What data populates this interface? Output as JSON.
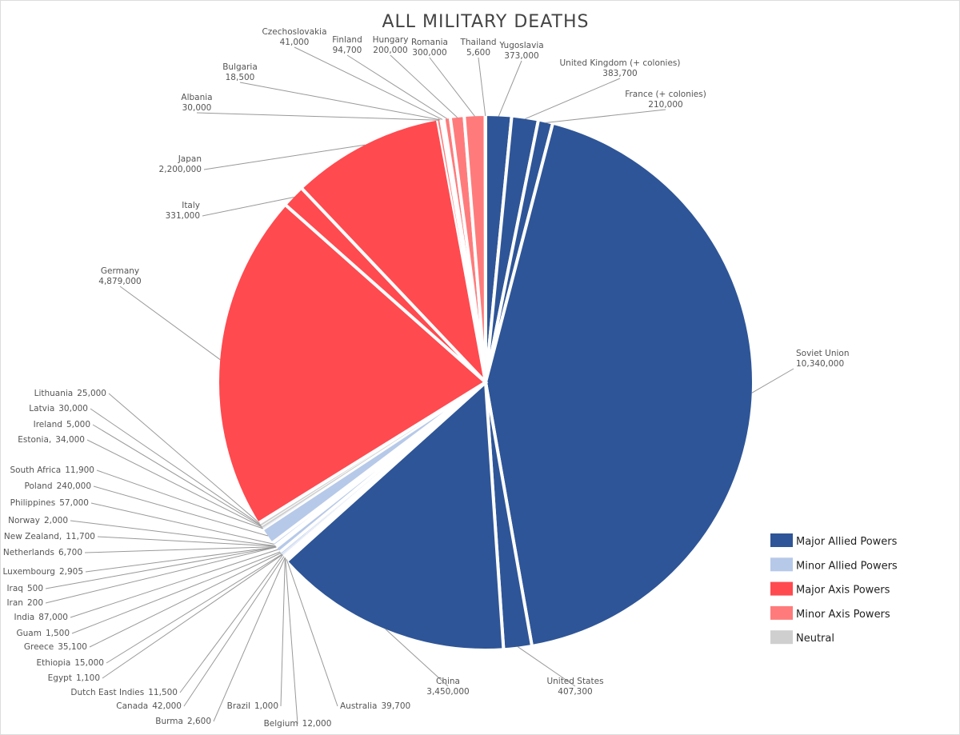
{
  "chart_data": {
    "type": "pie",
    "title": "ALL MILITARY DEATHS",
    "legend_position": "bottom-right",
    "legend": [
      {
        "label": "Major Allied Powers",
        "color": "#2e5597"
      },
      {
        "label": "Minor Allied Powers",
        "color": "#b7c9e8"
      },
      {
        "label": "Major Axis Powers",
        "color": "#ff4a4f"
      },
      {
        "label": "Minor Axis Powers",
        "color": "#ff7b7b"
      },
      {
        "label": "Neutral",
        "color": "#cfcfcf"
      }
    ],
    "items": [
      {
        "name": "Yugoslavia",
        "value_text": "373,000",
        "value": 373000,
        "group": 0
      },
      {
        "name": "United Kingdom (+ colonies)",
        "value_text": "383,700",
        "value": 383700,
        "group": 0
      },
      {
        "name": "France (+ colonies)",
        "value_text": "210,000",
        "value": 210000,
        "group": 0
      },
      {
        "name": "Soviet Union",
        "value_text": "10,340,000",
        "value": 10340000,
        "group": 0
      },
      {
        "name": "United States",
        "value_text": "407,300",
        "value": 407300,
        "group": 0
      },
      {
        "name": "China",
        "value_text": "3,450,000",
        "value": 3450000,
        "group": 0
      },
      {
        "name": "Australia",
        "value_text": "39,700",
        "value": 39700,
        "group": 1
      },
      {
        "name": "Belgium",
        "value_text": "12,000",
        "value": 12000,
        "group": 1
      },
      {
        "name": "Brazil",
        "value_text": "1,000",
        "value": 1000,
        "group": 1
      },
      {
        "name": "Burma",
        "value_text": "2,600",
        "value": 2600,
        "group": 1
      },
      {
        "name": "Canada",
        "value_text": "42,000",
        "value": 42000,
        "group": 1
      },
      {
        "name": "Dutch East Indies",
        "value_text": "11,500",
        "value": 11500,
        "group": 1
      },
      {
        "name": "Egypt",
        "value_text": "1,100",
        "value": 1100,
        "group": 1
      },
      {
        "name": "Ethiopia",
        "value_text": "15,000",
        "value": 15000,
        "group": 1
      },
      {
        "name": "Greece",
        "value_text": "35,100",
        "value": 35100,
        "group": 1
      },
      {
        "name": "Guam",
        "value_text": "1,500",
        "value": 1500,
        "group": 1
      },
      {
        "name": "India",
        "value_text": "87,000",
        "value": 87000,
        "group": 1
      },
      {
        "name": "Iran",
        "value_text": "200",
        "value": 200,
        "group": 1
      },
      {
        "name": "Iraq",
        "value_text": "500",
        "value": 500,
        "group": 1
      },
      {
        "name": "Luxembourg",
        "value_text": "2,905",
        "value": 2905,
        "group": 1
      },
      {
        "name": "Netherlands",
        "value_text": "6,700",
        "value": 6700,
        "group": 1
      },
      {
        "name": "New Zealand,",
        "value_text": "11,700",
        "value": 11700,
        "group": 1
      },
      {
        "name": "Norway",
        "value_text": "2,000",
        "value": 2000,
        "group": 1
      },
      {
        "name": "Philippines",
        "value_text": "57,000",
        "value": 57000,
        "group": 1
      },
      {
        "name": "Poland",
        "value_text": "240,000",
        "value": 240000,
        "group": 1
      },
      {
        "name": "South Africa",
        "value_text": "11,900",
        "value": 11900,
        "group": 1
      },
      {
        "name": "Estonia,",
        "value_text": "34,000",
        "value": 34000,
        "group": 4
      },
      {
        "name": "Ireland",
        "value_text": "5,000",
        "value": 5000,
        "group": 4
      },
      {
        "name": "Latvia",
        "value_text": "30,000",
        "value": 30000,
        "group": 4
      },
      {
        "name": "Lithuania",
        "value_text": "25,000",
        "value": 25000,
        "group": 4
      },
      {
        "name": "Germany",
        "value_text": "4,879,000",
        "value": 4879000,
        "group": 2
      },
      {
        "name": "Italy",
        "value_text": "331,000",
        "value": 331000,
        "group": 2
      },
      {
        "name": "Japan",
        "value_text": "2,200,000",
        "value": 2200000,
        "group": 2
      },
      {
        "name": "Albania",
        "value_text": "30,000",
        "value": 30000,
        "group": 3
      },
      {
        "name": "Bulgaria",
        "value_text": "18,500",
        "value": 18500,
        "group": 3
      },
      {
        "name": "Czechoslovakia",
        "value_text": "41,000",
        "value": 41000,
        "group": 3
      },
      {
        "name": "Finland",
        "value_text": "94,700",
        "value": 94700,
        "group": 3
      },
      {
        "name": "Hungary",
        "value_text": "200,000",
        "value": 200000,
        "group": 3
      },
      {
        "name": "Romania",
        "value_text": "300,000",
        "value": 300000,
        "group": 3
      },
      {
        "name": "Thailand",
        "value_text": "5,600",
        "value": 5600,
        "group": 3
      }
    ]
  }
}
